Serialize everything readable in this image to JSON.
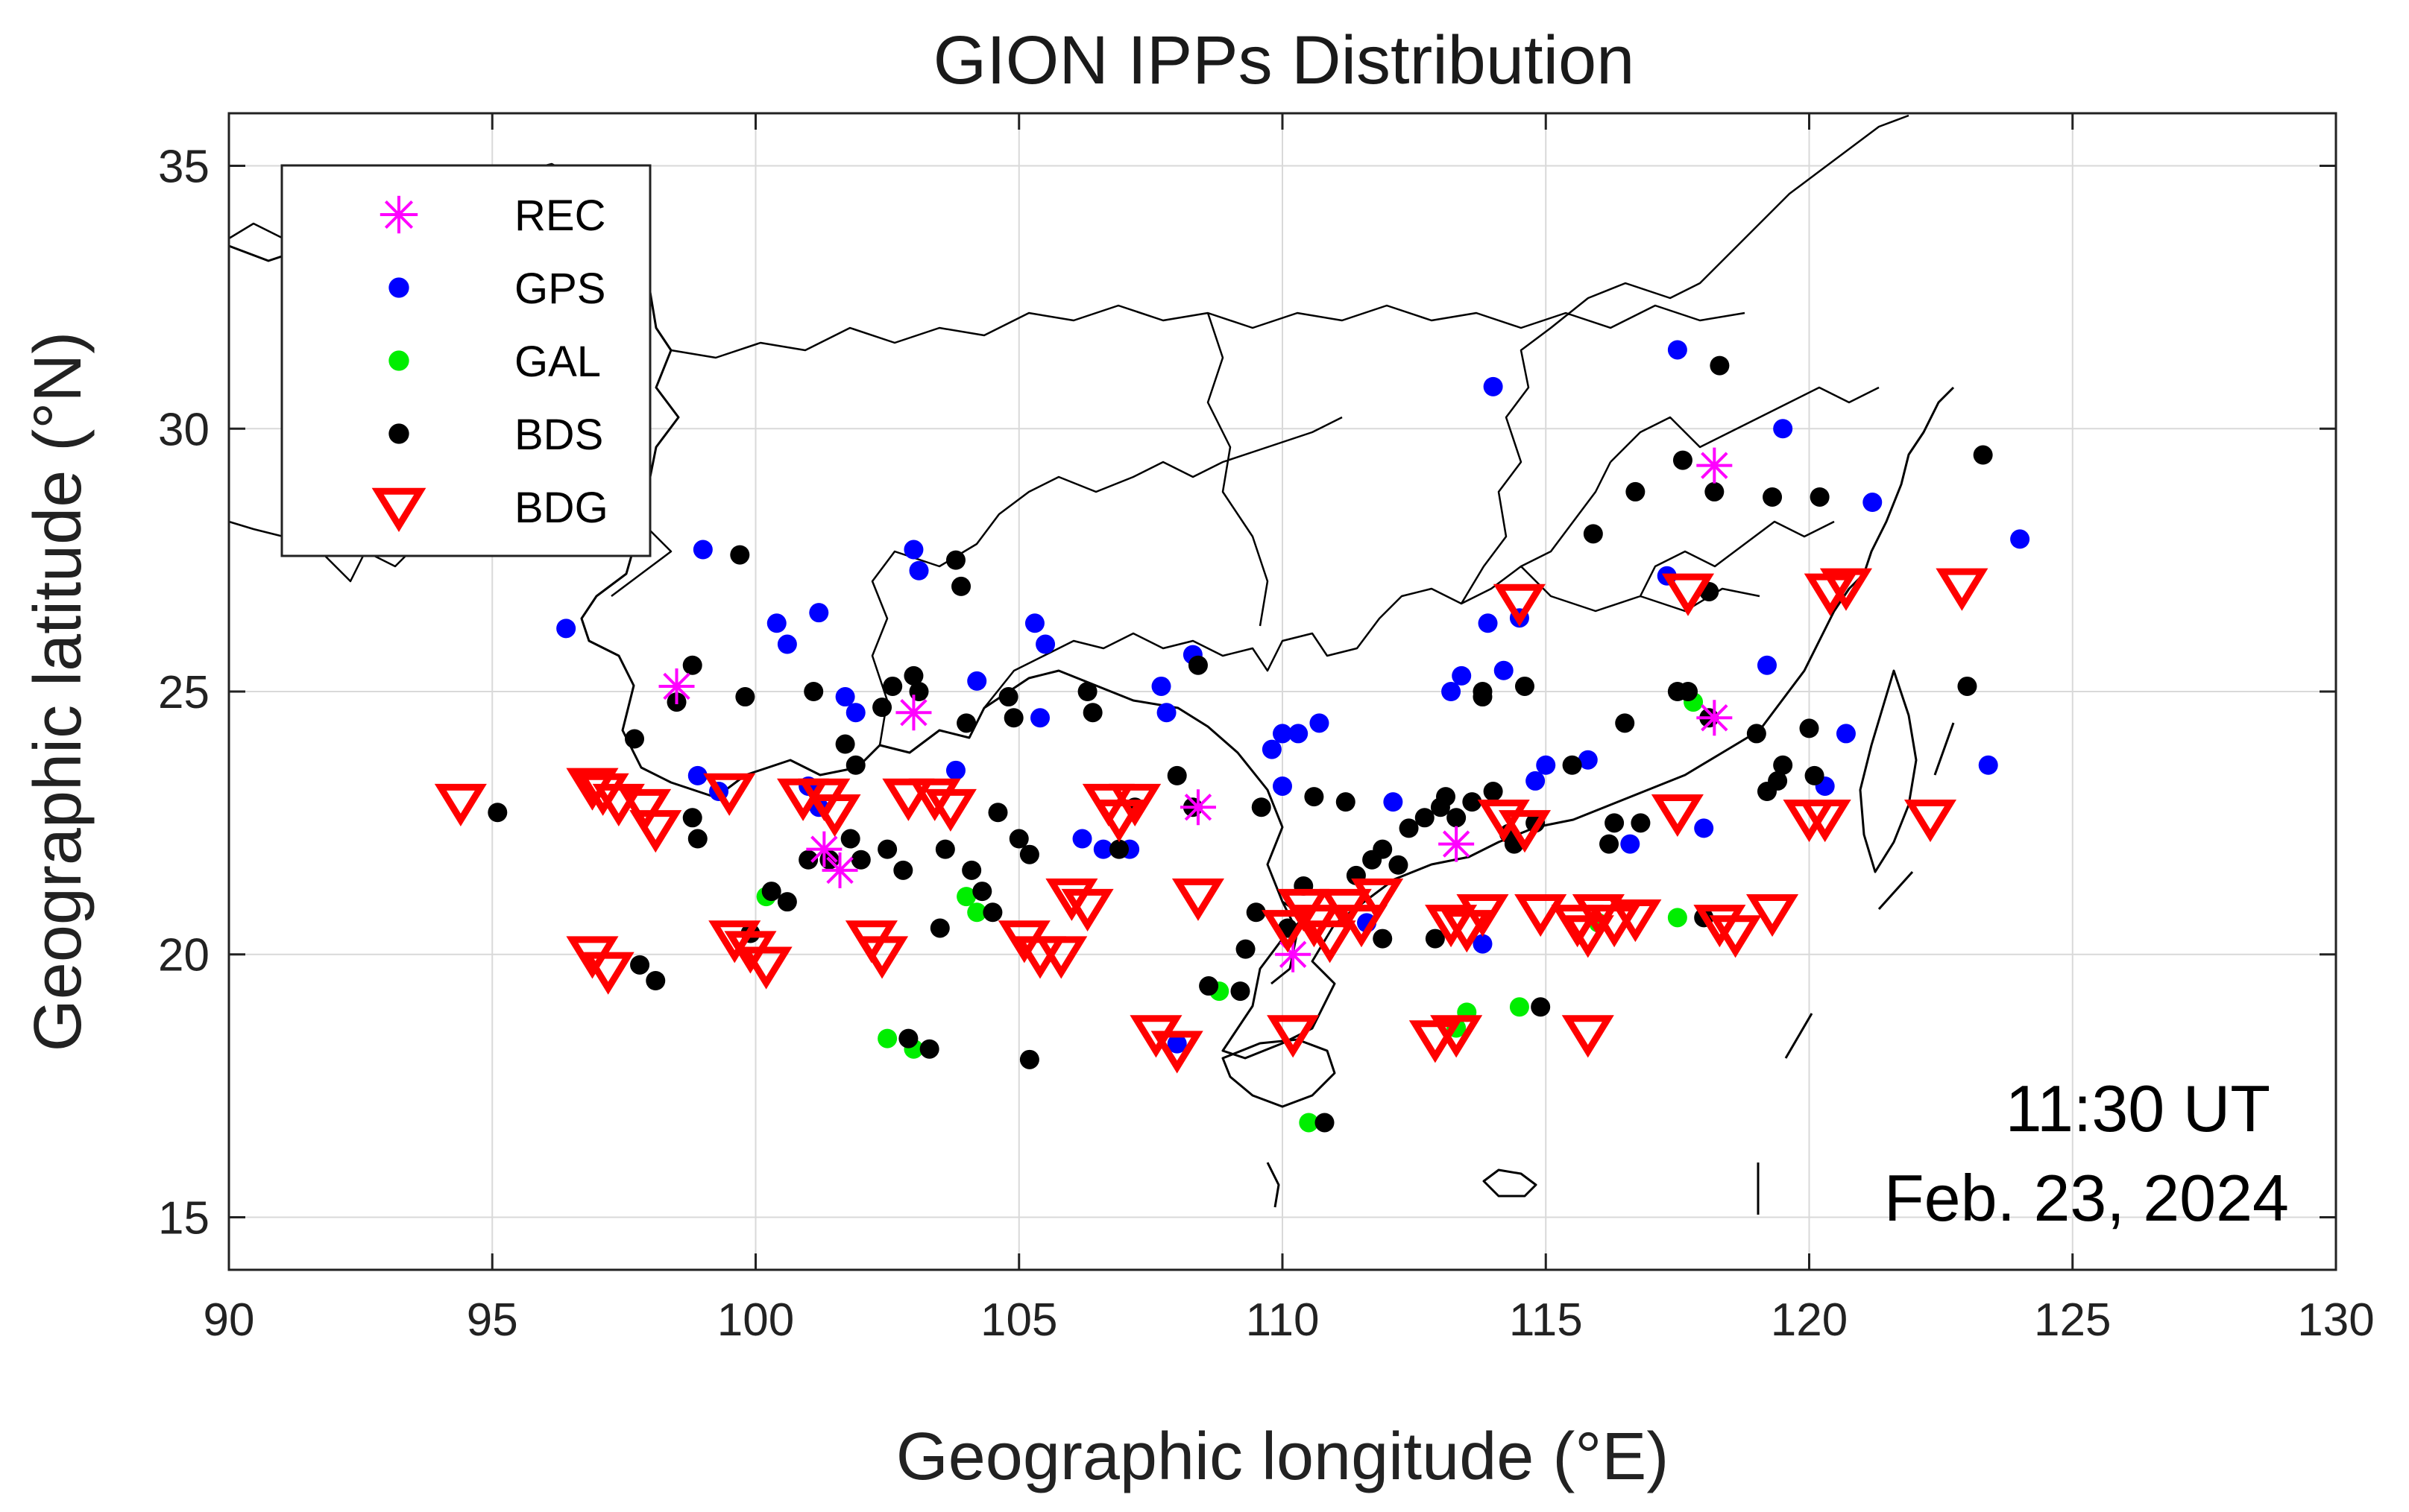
{
  "chart_data": {
    "type": "scatter",
    "title": "GION IPPs Distribution",
    "xlabel": "Geographic longitude (°E)",
    "ylabel": "Geographic latitude (°N)",
    "xlim": [
      90,
      130
    ],
    "ylim": [
      14,
      36
    ],
    "xticks": [
      "90",
      "95",
      "100",
      "105",
      "110",
      "115",
      "120",
      "125",
      "130"
    ],
    "yticks": [
      "15",
      "20",
      "25",
      "30",
      "35"
    ],
    "grid": true,
    "legend_position": "top-left",
    "annotations": [
      "11:30 UT",
      "Feb. 23, 2024"
    ],
    "series": [
      {
        "name": "REC",
        "marker": "asterisk",
        "color": "#ff00ff",
        "points": [
          [
            98.5,
            25.1
          ],
          [
            101.3,
            22.0
          ],
          [
            101.6,
            21.6
          ],
          [
            103.0,
            24.6
          ],
          [
            108.4,
            22.8
          ],
          [
            110.2,
            20.0
          ],
          [
            113.3,
            22.1
          ],
          [
            118.2,
            29.3
          ],
          [
            118.2,
            24.5
          ]
        ]
      },
      {
        "name": "GPS",
        "marker": "dot",
        "color": "#0000ff",
        "points": [
          [
            96.4,
            26.2
          ],
          [
            99.0,
            27.7
          ],
          [
            98.9,
            23.4
          ],
          [
            99.3,
            23.1
          ],
          [
            100.4,
            26.3
          ],
          [
            100.6,
            25.9
          ],
          [
            101.2,
            26.5
          ],
          [
            101.7,
            24.9
          ],
          [
            101.9,
            24.6
          ],
          [
            101.0,
            23.2
          ],
          [
            101.2,
            22.8
          ],
          [
            103.0,
            27.7
          ],
          [
            103.1,
            27.3
          ],
          [
            103.8,
            23.5
          ],
          [
            104.2,
            25.2
          ],
          [
            105.3,
            26.3
          ],
          [
            105.5,
            25.9
          ],
          [
            105.4,
            24.5
          ],
          [
            106.2,
            22.2
          ],
          [
            106.6,
            22.0
          ],
          [
            107.1,
            22.0
          ],
          [
            107.7,
            25.1
          ],
          [
            107.8,
            24.6
          ],
          [
            108.3,
            25.7
          ],
          [
            108.0,
            18.3
          ],
          [
            109.8,
            23.9
          ],
          [
            110.0,
            24.2
          ],
          [
            110.3,
            24.2
          ],
          [
            110.0,
            23.2
          ],
          [
            110.7,
            24.4
          ],
          [
            111.6,
            20.6
          ],
          [
            112.1,
            22.9
          ],
          [
            113.2,
            25.0
          ],
          [
            113.4,
            25.3
          ],
          [
            113.9,
            26.3
          ],
          [
            114.0,
            30.8
          ],
          [
            114.2,
            25.4
          ],
          [
            114.5,
            26.4
          ],
          [
            113.8,
            20.2
          ],
          [
            114.8,
            23.3
          ],
          [
            115.0,
            23.6
          ],
          [
            115.8,
            23.7
          ],
          [
            116.6,
            22.1
          ],
          [
            117.3,
            27.2
          ],
          [
            117.5,
            31.5
          ],
          [
            118.0,
            22.4
          ],
          [
            119.2,
            25.5
          ],
          [
            119.5,
            30.0
          ],
          [
            120.3,
            23.2
          ],
          [
            120.7,
            24.2
          ],
          [
            121.2,
            28.6
          ],
          [
            123.4,
            23.6
          ],
          [
            124.0,
            27.9
          ]
        ]
      },
      {
        "name": "GAL",
        "marker": "dot",
        "color": "#00ee00",
        "points": [
          [
            100.2,
            21.1
          ],
          [
            102.5,
            18.4
          ],
          [
            103.0,
            18.2
          ],
          [
            104.0,
            21.1
          ],
          [
            104.2,
            20.8
          ],
          [
            108.8,
            19.3
          ],
          [
            110.5,
            16.8
          ],
          [
            113.3,
            18.6
          ],
          [
            113.5,
            18.9
          ],
          [
            114.5,
            19.0
          ],
          [
            116.0,
            20.6
          ],
          [
            117.5,
            20.7
          ],
          [
            117.8,
            24.8
          ]
        ]
      },
      {
        "name": "BDS",
        "marker": "dot",
        "color": "#000000",
        "points": [
          [
            95.1,
            22.7
          ],
          [
            97.7,
            24.1
          ],
          [
            97.8,
            19.8
          ],
          [
            98.1,
            19.5
          ],
          [
            98.5,
            24.8
          ],
          [
            98.8,
            25.5
          ],
          [
            98.9,
            22.2
          ],
          [
            98.8,
            22.6
          ],
          [
            99.7,
            27.6
          ],
          [
            99.8,
            24.9
          ],
          [
            99.9,
            20.4
          ],
          [
            100.3,
            21.2
          ],
          [
            100.6,
            21.0
          ],
          [
            101.0,
            21.8
          ],
          [
            101.1,
            25.0
          ],
          [
            101.4,
            21.8
          ],
          [
            101.7,
            24.0
          ],
          [
            101.9,
            23.6
          ],
          [
            101.8,
            22.2
          ],
          [
            102.0,
            21.8
          ],
          [
            102.4,
            24.7
          ],
          [
            102.5,
            22.0
          ],
          [
            102.6,
            25.1
          ],
          [
            102.8,
            21.6
          ],
          [
            102.9,
            18.4
          ],
          [
            103.0,
            25.3
          ],
          [
            103.1,
            25.0
          ],
          [
            103.3,
            18.2
          ],
          [
            103.5,
            20.5
          ],
          [
            103.6,
            22.0
          ],
          [
            103.8,
            27.5
          ],
          [
            103.9,
            27.0
          ],
          [
            104.0,
            24.4
          ],
          [
            104.1,
            21.6
          ],
          [
            104.3,
            21.2
          ],
          [
            104.5,
            20.8
          ],
          [
            104.6,
            22.7
          ],
          [
            104.8,
            24.9
          ],
          [
            104.9,
            24.5
          ],
          [
            105.0,
            22.2
          ],
          [
            105.2,
            21.9
          ],
          [
            105.2,
            18.0
          ],
          [
            106.3,
            25.0
          ],
          [
            106.4,
            24.6
          ],
          [
            106.9,
            22.0
          ],
          [
            107.2,
            22.8
          ],
          [
            108.0,
            23.4
          ],
          [
            108.3,
            22.8
          ],
          [
            108.4,
            25.5
          ],
          [
            108.6,
            19.4
          ],
          [
            109.2,
            19.3
          ],
          [
            109.3,
            20.1
          ],
          [
            109.5,
            20.8
          ],
          [
            109.6,
            22.8
          ],
          [
            110.1,
            20.5
          ],
          [
            110.4,
            21.3
          ],
          [
            110.6,
            23.0
          ],
          [
            110.8,
            16.8
          ],
          [
            111.2,
            22.9
          ],
          [
            111.4,
            21.5
          ],
          [
            111.7,
            21.8
          ],
          [
            111.9,
            20.3
          ],
          [
            111.9,
            22.0
          ],
          [
            112.2,
            21.7
          ],
          [
            112.4,
            22.4
          ],
          [
            112.7,
            22.6
          ],
          [
            112.9,
            20.3
          ],
          [
            113.0,
            22.8
          ],
          [
            113.1,
            23.0
          ],
          [
            113.3,
            22.6
          ],
          [
            113.6,
            22.9
          ],
          [
            113.8,
            24.9
          ],
          [
            113.8,
            25.0
          ],
          [
            114.0,
            23.1
          ],
          [
            114.3,
            22.3
          ],
          [
            114.4,
            22.1
          ],
          [
            114.6,
            25.1
          ],
          [
            114.8,
            22.5
          ],
          [
            114.9,
            19.0
          ],
          [
            115.5,
            23.6
          ],
          [
            115.9,
            28.0
          ],
          [
            116.2,
            22.1
          ],
          [
            116.3,
            22.5
          ],
          [
            116.5,
            24.4
          ],
          [
            116.7,
            28.8
          ],
          [
            116.8,
            22.5
          ],
          [
            117.5,
            25.0
          ],
          [
            117.7,
            25.0
          ],
          [
            117.6,
            29.4
          ],
          [
            118.0,
            20.7
          ],
          [
            118.1,
            24.5
          ],
          [
            118.1,
            26.9
          ],
          [
            118.2,
            28.8
          ],
          [
            118.3,
            31.2
          ],
          [
            119.0,
            24.2
          ],
          [
            119.2,
            23.1
          ],
          [
            119.3,
            28.7
          ],
          [
            119.4,
            23.3
          ],
          [
            119.5,
            23.6
          ],
          [
            120.0,
            24.3
          ],
          [
            120.1,
            23.4
          ],
          [
            120.2,
            28.7
          ],
          [
            123.0,
            25.1
          ],
          [
            123.3,
            29.5
          ]
        ]
      },
      {
        "name": "BDG",
        "marker": "triangle-down",
        "color": "#ff0000",
        "points": [
          [
            94.4,
            22.9
          ],
          [
            96.9,
            23.2
          ],
          [
            97.1,
            23.1
          ],
          [
            97.4,
            22.9
          ],
          [
            97.9,
            22.8
          ],
          [
            98.1,
            22.4
          ],
          [
            96.9,
            20.0
          ],
          [
            97.2,
            19.7
          ],
          [
            99.5,
            23.1
          ],
          [
            99.6,
            20.3
          ],
          [
            99.9,
            20.1
          ],
          [
            100.2,
            19.8
          ],
          [
            100.9,
            23.0
          ],
          [
            101.3,
            23.0
          ],
          [
            101.5,
            22.7
          ],
          [
            102.2,
            20.3
          ],
          [
            102.4,
            20.0
          ],
          [
            102.9,
            23.0
          ],
          [
            103.4,
            23.0
          ],
          [
            103.7,
            22.8
          ],
          [
            105.1,
            20.3
          ],
          [
            105.4,
            20.0
          ],
          [
            105.8,
            20.0
          ],
          [
            106.0,
            21.1
          ],
          [
            106.3,
            20.9
          ],
          [
            106.7,
            22.9
          ],
          [
            106.9,
            22.6
          ],
          [
            107.2,
            22.9
          ],
          [
            107.6,
            18.5
          ],
          [
            108.0,
            18.2
          ],
          [
            108.4,
            21.1
          ],
          [
            110.1,
            20.5
          ],
          [
            110.4,
            20.9
          ],
          [
            110.6,
            20.6
          ],
          [
            110.9,
            20.3
          ],
          [
            111.2,
            20.9
          ],
          [
            111.5,
            20.6
          ],
          [
            111.8,
            21.1
          ],
          [
            110.2,
            18.5
          ],
          [
            112.9,
            18.4
          ],
          [
            113.2,
            20.6
          ],
          [
            113.5,
            20.5
          ],
          [
            113.8,
            20.8
          ],
          [
            113.3,
            18.5
          ],
          [
            114.2,
            22.6
          ],
          [
            114.6,
            22.4
          ],
          [
            114.5,
            26.7
          ],
          [
            114.9,
            20.8
          ],
          [
            115.6,
            20.6
          ],
          [
            115.8,
            20.4
          ],
          [
            116.0,
            20.8
          ],
          [
            116.3,
            20.6
          ],
          [
            116.7,
            20.7
          ],
          [
            115.8,
            18.5
          ],
          [
            117.5,
            22.7
          ],
          [
            117.7,
            26.9
          ],
          [
            118.3,
            20.6
          ],
          [
            118.6,
            20.4
          ],
          [
            119.3,
            20.8
          ],
          [
            120.0,
            22.6
          ],
          [
            120.3,
            22.6
          ],
          [
            120.4,
            26.9
          ],
          [
            120.7,
            27.0
          ],
          [
            122.3,
            22.6
          ],
          [
            122.9,
            27.0
          ]
        ]
      }
    ]
  }
}
